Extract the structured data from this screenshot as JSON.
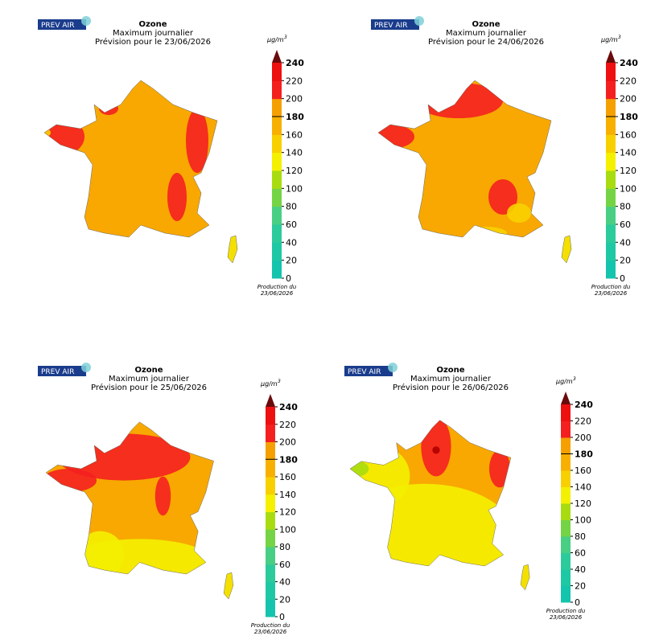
{
  "panels": [
    {
      "logo": "PREV AIR",
      "title": "Ozone",
      "subtitle": "Maximum journalier",
      "forecast": "Prévision pour le 23/06/2026",
      "unit": "μg/m",
      "unit_exp": "3",
      "production": "Production du",
      "production_date": "23/06/2026"
    },
    {
      "logo": "PREV AIR",
      "title": "Ozone",
      "subtitle": "Maximum journalier",
      "forecast": "Prévision pour le 24/06/2026",
      "unit": "μg/m",
      "unit_exp": "3",
      "production": "Production du",
      "production_date": "23/06/2026"
    },
    {
      "logo": "PREV AIR",
      "title": "Ozone",
      "subtitle": "Maximum journalier",
      "forecast": "Prévision pour le 25/06/2026",
      "unit": "μg/m",
      "unit_exp": "3",
      "production": "Production du",
      "production_date": "23/06/2026"
    },
    {
      "logo": "PREV AIR",
      "title": "Ozone",
      "subtitle": "Maximum journalier",
      "forecast": "Prévision pour le 26/06/2026",
      "unit": "μg/m",
      "unit_exp": "3",
      "production": "Production du",
      "production_date": "23/06/2026"
    }
  ],
  "scale": {
    "min": 0,
    "max": 240,
    "ticks": [
      0,
      20,
      40,
      60,
      80,
      100,
      120,
      140,
      160,
      180,
      200,
      220,
      240
    ],
    "bold_ticks": [
      180,
      240
    ],
    "colors": [
      "#14c4ac",
      "#1fc8a4",
      "#2ccb9c",
      "#48cf84",
      "#74d445",
      "#a8dc10",
      "#f4f000",
      "#f8d000",
      "#f8b000",
      "#f5a000",
      "#f42020",
      "#ee1010",
      "#d80000"
    ],
    "top_color": "#6a0a0a"
  }
}
